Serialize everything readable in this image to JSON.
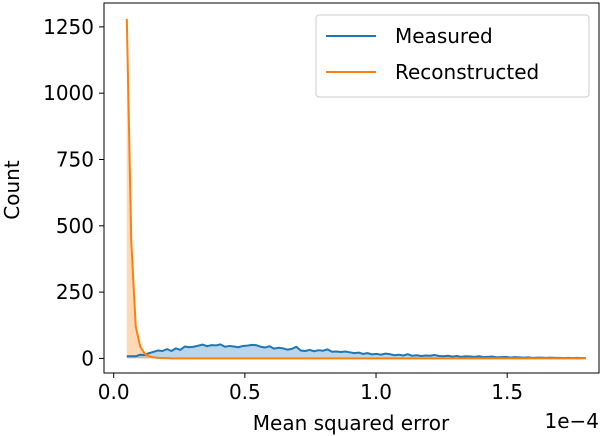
{
  "chart_data": {
    "type": "line",
    "title": "",
    "xlabel": "Mean squared error",
    "ylabel": "Count",
    "x_offset_label": "1e−4",
    "xlim": [
      -0.037,
      1.85
    ],
    "ylim": [
      -55,
      1340
    ],
    "x_ticks": [
      0.0,
      0.5,
      1.0,
      1.5
    ],
    "x_tick_labels": [
      "0.0",
      "0.5",
      "1.0",
      "1.5"
    ],
    "y_ticks": [
      0,
      250,
      500,
      750,
      1000,
      1250
    ],
    "y_tick_labels": [
      "0",
      "250",
      "500",
      "750",
      "1000",
      "1250"
    ],
    "grid": false,
    "legend_position": "top-right",
    "series": [
      {
        "name": "Measured",
        "color": "#1f77b4",
        "fill": true,
        "x": [
          0.05,
          0.067,
          0.084,
          0.101,
          0.118,
          0.135,
          0.152,
          0.169,
          0.186,
          0.203,
          0.22,
          0.237,
          0.254,
          0.271,
          0.288,
          0.305,
          0.322,
          0.339,
          0.356,
          0.373,
          0.39,
          0.407,
          0.424,
          0.441,
          0.458,
          0.475,
          0.492,
          0.509,
          0.526,
          0.543,
          0.56,
          0.577,
          0.594,
          0.611,
          0.628,
          0.645,
          0.662,
          0.679,
          0.696,
          0.713,
          0.73,
          0.747,
          0.764,
          0.781,
          0.798,
          0.815,
          0.832,
          0.849,
          0.866,
          0.883,
          0.9,
          0.917,
          0.934,
          0.951,
          0.968,
          0.985,
          1.002,
          1.019,
          1.036,
          1.053,
          1.07,
          1.087,
          1.104,
          1.121,
          1.138,
          1.155,
          1.172,
          1.189,
          1.206,
          1.223,
          1.24,
          1.257,
          1.274,
          1.291,
          1.308,
          1.325,
          1.342,
          1.359,
          1.376,
          1.393,
          1.41,
          1.427,
          1.444,
          1.461,
          1.478,
          1.495,
          1.512,
          1.529,
          1.546,
          1.563,
          1.58,
          1.597,
          1.614,
          1.631,
          1.648,
          1.665,
          1.682,
          1.699,
          1.716,
          1.733,
          1.75,
          1.767,
          1.784,
          1.8
        ],
        "values": [
          8,
          8,
          8,
          14,
          13,
          20,
          25,
          30,
          28,
          35,
          28,
          38,
          32,
          45,
          42,
          44,
          48,
          52,
          46,
          50,
          49,
          53,
          44,
          47,
          45,
          42,
          47,
          48,
          51,
          50,
          44,
          41,
          46,
          37,
          40,
          38,
          33,
          36,
          44,
          30,
          28,
          32,
          27,
          31,
          29,
          34,
          25,
          26,
          24,
          26,
          23,
          20,
          22,
          17,
          20,
          15,
          17,
          14,
          18,
          16,
          12,
          14,
          11,
          16,
          10,
          12,
          9,
          11,
          10,
          13,
          9,
          8,
          10,
          7,
          9,
          6,
          8,
          7,
          6,
          8,
          5,
          6,
          7,
          4,
          5,
          6,
          3,
          5,
          4,
          3,
          4,
          2,
          3,
          3,
          2,
          3,
          2,
          2,
          1,
          2,
          1,
          2,
          1,
          1
        ]
      },
      {
        "name": "Reconstructed",
        "color": "#ff7f0e",
        "fill": true,
        "x": [
          0.05,
          0.067,
          0.084,
          0.101,
          0.118,
          0.135,
          0.152,
          0.169,
          0.186,
          0.203,
          0.22,
          0.25,
          0.3,
          0.4,
          0.5,
          0.6,
          0.7,
          0.8,
          0.9,
          1.0,
          1.1,
          1.2,
          1.3,
          1.4,
          1.5,
          1.6,
          1.7,
          1.8
        ],
        "values": [
          1280,
          440,
          120,
          45,
          18,
          8,
          4,
          2,
          1,
          1,
          0,
          0,
          0,
          0,
          0,
          0,
          0,
          0,
          0,
          0,
          0,
          0,
          0,
          0,
          0,
          0,
          0,
          0
        ]
      }
    ]
  }
}
